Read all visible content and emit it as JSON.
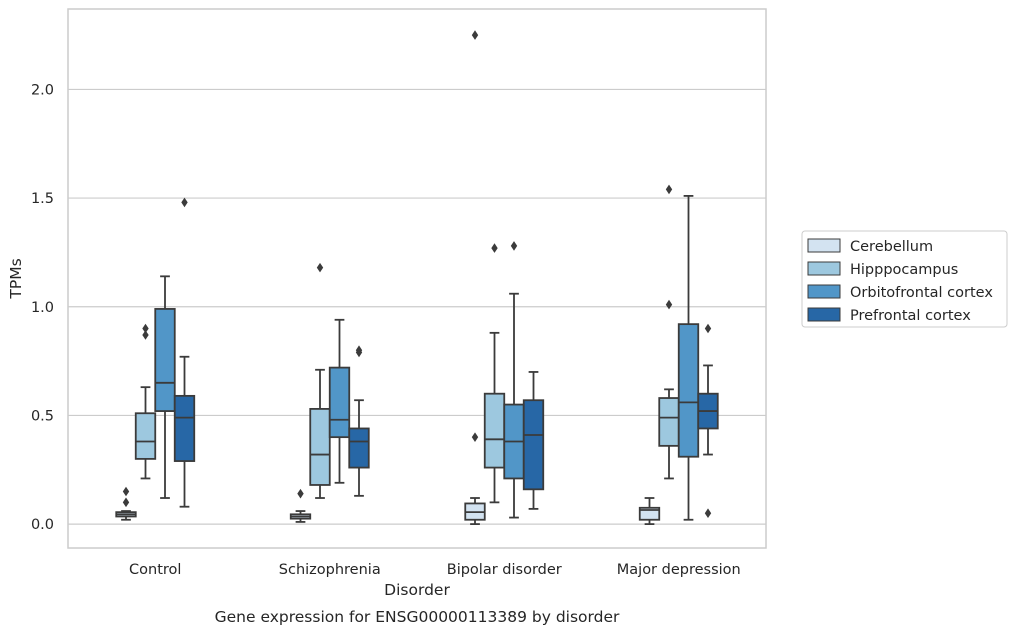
{
  "chart_data": {
    "type": "box",
    "title": "",
    "caption": "Gene expression for ENSG00000113389 by disorder",
    "xlabel": "Disorder",
    "ylabel": "TPMs",
    "ylim": [
      -0.11,
      2.37
    ],
    "yticks": [
      "0.0",
      "0.5",
      "1.0",
      "1.5",
      "2.0"
    ],
    "grid": "horizontal",
    "legend_position": "right",
    "categories": [
      "Control",
      "Schizophrenia",
      "Bipolar disorder",
      "Major depression"
    ],
    "series": [
      {
        "name": "Cerebellum",
        "color": "#d3e3f1",
        "boxes": [
          {
            "whislo": 0.02,
            "q1": 0.035,
            "med": 0.045,
            "q3": 0.055,
            "whishi": 0.06,
            "fliers": [
              0.1,
              0.15
            ]
          },
          {
            "whislo": 0.01,
            "q1": 0.025,
            "med": 0.035,
            "q3": 0.045,
            "whishi": 0.06,
            "fliers": [
              0.14
            ]
          },
          {
            "whislo": 0.0,
            "q1": 0.02,
            "med": 0.055,
            "q3": 0.095,
            "whishi": 0.12,
            "fliers": [
              0.4,
              2.25
            ]
          },
          {
            "whislo": 0.0,
            "q1": 0.02,
            "med": 0.065,
            "q3": 0.075,
            "whishi": 0.12,
            "fliers": []
          }
        ]
      },
      {
        "name": "Hipppocampus",
        "color": "#9dc8df",
        "boxes": [
          {
            "whislo": 0.21,
            "q1": 0.3,
            "med": 0.38,
            "q3": 0.51,
            "whishi": 0.63,
            "fliers": [
              0.87,
              0.9
            ]
          },
          {
            "whislo": 0.12,
            "q1": 0.18,
            "med": 0.32,
            "q3": 0.53,
            "whishi": 0.71,
            "fliers": [
              1.18
            ]
          },
          {
            "whislo": 0.1,
            "q1": 0.26,
            "med": 0.39,
            "q3": 0.6,
            "whishi": 0.88,
            "fliers": [
              1.27
            ]
          },
          {
            "whislo": 0.21,
            "q1": 0.36,
            "med": 0.49,
            "q3": 0.58,
            "whishi": 0.62,
            "fliers": [
              1.01,
              1.54
            ]
          }
        ]
      },
      {
        "name": "Orbitofrontal cortex",
        "color": "#5196c8",
        "boxes": [
          {
            "whislo": 0.12,
            "q1": 0.52,
            "med": 0.65,
            "q3": 0.99,
            "whishi": 1.14,
            "fliers": []
          },
          {
            "whislo": 0.19,
            "q1": 0.4,
            "med": 0.48,
            "q3": 0.72,
            "whishi": 0.94,
            "fliers": []
          },
          {
            "whislo": 0.03,
            "q1": 0.21,
            "med": 0.38,
            "q3": 0.55,
            "whishi": 1.06,
            "fliers": [
              1.28
            ]
          },
          {
            "whislo": 0.02,
            "q1": 0.31,
            "med": 0.56,
            "q3": 0.92,
            "whishi": 1.51,
            "fliers": []
          }
        ]
      },
      {
        "name": "Prefrontal cortex",
        "color": "#2767a6",
        "boxes": [
          {
            "whislo": 0.08,
            "q1": 0.29,
            "med": 0.49,
            "q3": 0.59,
            "whishi": 0.77,
            "fliers": [
              1.48
            ]
          },
          {
            "whislo": 0.13,
            "q1": 0.26,
            "med": 0.38,
            "q3": 0.44,
            "whishi": 0.57,
            "fliers": [
              0.79,
              0.8
            ]
          },
          {
            "whislo": 0.07,
            "q1": 0.16,
            "med": 0.41,
            "q3": 0.57,
            "whishi": 0.7,
            "fliers": []
          },
          {
            "whislo": 0.32,
            "q1": 0.44,
            "med": 0.52,
            "q3": 0.6,
            "whishi": 0.73,
            "fliers": [
              0.05,
              0.9
            ]
          }
        ]
      }
    ]
  }
}
